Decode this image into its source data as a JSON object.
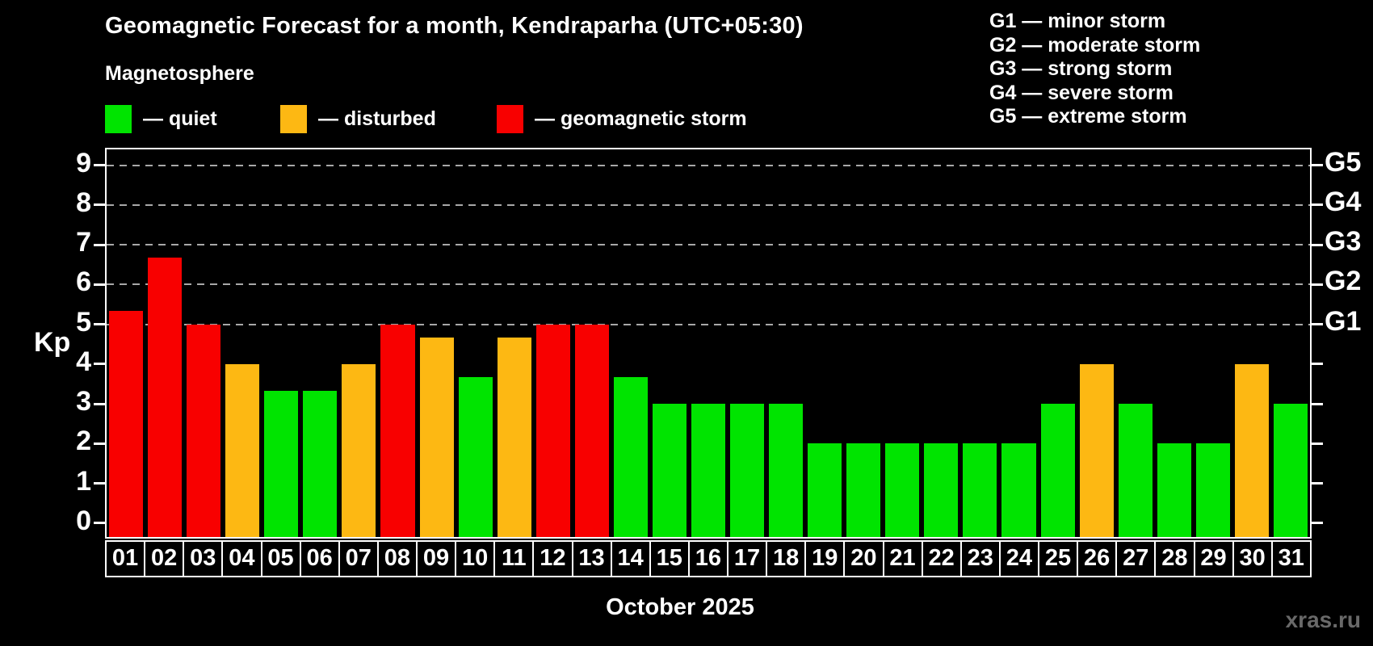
{
  "title": "Geomagnetic Forecast for a month, Kendraparha (UTC+05:30)",
  "subtitle": "Magnetosphere",
  "legend": {
    "items": [
      {
        "key": "quiet",
        "label": "— quiet",
        "color": "#00e400"
      },
      {
        "key": "disturbed",
        "label": "— disturbed",
        "color": "#fdb813"
      },
      {
        "key": "storm",
        "label": "— geomagnetic storm",
        "color": "#f80000"
      }
    ]
  },
  "g_scale_legend": [
    "G1 — minor storm",
    "G2 — moderate storm",
    "G3 — strong storm",
    "G4 — severe storm",
    "G5 — extreme storm"
  ],
  "y_axis_label": "Kp",
  "x_axis_label": "October 2025",
  "watermark": "xras.ru",
  "chart_data": {
    "type": "bar",
    "title": "Geomagnetic Forecast for a month, Kendraparha (UTC+05:30)",
    "xlabel": "October 2025",
    "ylabel": "Kp",
    "ylim": [
      -0.35,
      9.4
    ],
    "yticks": [
      0,
      1,
      2,
      3,
      4,
      5,
      6,
      7,
      8,
      9
    ],
    "gridlines_at": [
      5,
      6,
      7,
      8,
      9
    ],
    "grid_style": "dashed horizontal lines at Kp 5 through 9 only",
    "right_axis_labels": [
      {
        "kp": 5,
        "label": "G1"
      },
      {
        "kp": 6,
        "label": "G2"
      },
      {
        "kp": 7,
        "label": "G3"
      },
      {
        "kp": 8,
        "label": "G4"
      },
      {
        "kp": 9,
        "label": "G5"
      }
    ],
    "categories": [
      "01",
      "02",
      "03",
      "04",
      "05",
      "06",
      "07",
      "08",
      "09",
      "10",
      "11",
      "12",
      "13",
      "14",
      "15",
      "16",
      "17",
      "18",
      "19",
      "20",
      "21",
      "22",
      "23",
      "24",
      "25",
      "26",
      "27",
      "28",
      "29",
      "30",
      "31"
    ],
    "values": [
      5.33,
      6.67,
      5,
      4,
      3.33,
      3.33,
      4,
      5,
      4.67,
      3.67,
      4.67,
      5,
      5,
      3.67,
      3,
      3,
      3,
      3,
      2,
      2,
      2,
      2,
      2,
      2,
      3,
      4,
      3,
      2,
      2,
      4,
      3
    ],
    "bar_levels": [
      "storm",
      "storm",
      "storm",
      "disturbed",
      "quiet",
      "quiet",
      "disturbed",
      "storm",
      "disturbed",
      "quiet",
      "disturbed",
      "storm",
      "storm",
      "quiet",
      "quiet",
      "quiet",
      "quiet",
      "quiet",
      "quiet",
      "quiet",
      "quiet",
      "quiet",
      "quiet",
      "quiet",
      "quiet",
      "disturbed",
      "quiet",
      "quiet",
      "quiet",
      "disturbed",
      "quiet"
    ],
    "palette": {
      "quiet": "#00e400",
      "disturbed": "#fdb813",
      "storm": "#f80000"
    }
  }
}
